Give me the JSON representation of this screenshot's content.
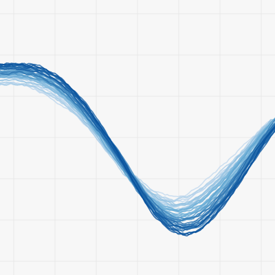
{
  "chart_data": {
    "type": "line",
    "title": "",
    "xlabel": "",
    "ylabel": "",
    "xlim": [
      0,
      100
    ],
    "ylim": [
      0,
      100
    ],
    "grid": true,
    "legend": "none",
    "x": [
      0,
      5,
      10,
      15,
      20,
      25,
      30,
      35,
      40,
      45,
      50,
      55,
      60,
      65,
      70,
      75,
      80,
      85,
      90,
      95,
      100
    ],
    "ensemble": {
      "count": 48,
      "mean_curve": [
        74.8,
        75.1,
        74.6,
        73.0,
        70.3,
        66.2,
        61.0,
        54.8,
        48.0,
        41.0,
        34.5,
        29.2,
        25.8,
        24.5,
        25.6,
        28.8,
        33.6,
        39.1,
        45.0,
        51.0,
        56.6
      ],
      "lag_range": [
        -2.0,
        2.0
      ],
      "scale_range": [
        0.85,
        1.15
      ],
      "offset_range": [
        -5,
        5
      ]
    },
    "colors": {
      "light": "#c6dbef",
      "mid": "#6baed6",
      "dark": "#08519c",
      "grid": "#e9e9e9",
      "background": "#f7f7f7"
    }
  }
}
